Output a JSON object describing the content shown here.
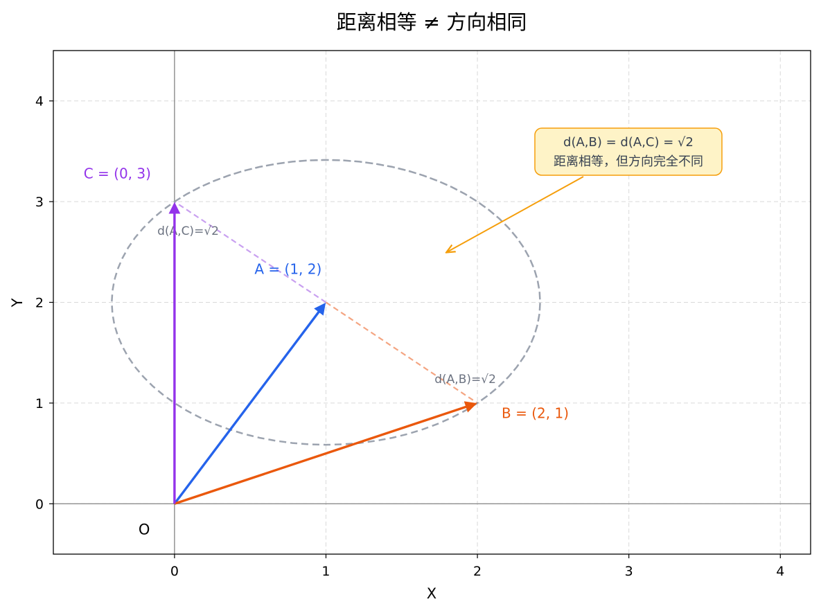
{
  "chart_data": {
    "type": "line",
    "title": "距离相等 ≠ 方向相同",
    "xlabel": "X",
    "ylabel": "Y",
    "xlim": [
      -0.8,
      4.2
    ],
    "ylim": [
      -0.5,
      4.5
    ],
    "xticks": [
      0,
      1,
      2,
      3,
      4
    ],
    "yticks": [
      0,
      1,
      2,
      3,
      4
    ],
    "grid": true,
    "origin_label": "O",
    "vectors": [
      {
        "label": "A = (1, 2)",
        "x": 1,
        "y": 2,
        "color": "#2563eb"
      },
      {
        "label": "B = (2, 1)",
        "x": 2,
        "y": 1,
        "color": "#ea580c"
      },
      {
        "label": "C = (0, 3)",
        "x": 0,
        "y": 3,
        "color": "#9333ea"
      }
    ],
    "distance_segments": [
      {
        "from": "A",
        "to": "B",
        "label": "d(A,B)=√2",
        "color": "#f4a582"
      },
      {
        "from": "A",
        "to": "C",
        "label": "d(A,C)=√2",
        "color": "#c9a0f0"
      }
    ],
    "circle": {
      "center": [
        1,
        2
      ],
      "radius": 1.4142,
      "color": "#9ca3af",
      "style": "dashed"
    },
    "annotation": {
      "line1": "d(A,B) = d(A,C) = √2",
      "line2": "距离相等，但方向完全不同",
      "point_to": [
        1.8,
        2.5
      ],
      "box_color": "#fef3c7",
      "border_color": "#f59e0b"
    }
  }
}
